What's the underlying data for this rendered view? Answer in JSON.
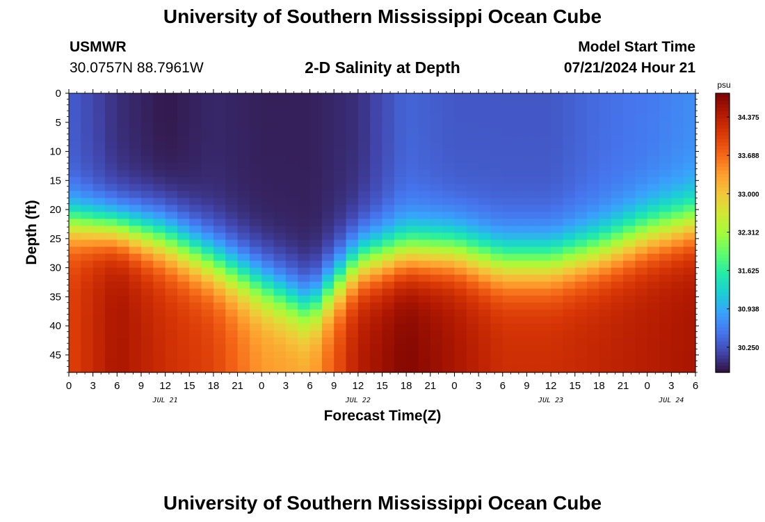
{
  "header": {
    "title": "University of Southern Mississippi Ocean Cube",
    "station_id": "USMWR",
    "station_coords": "30.0757N  88.7961W",
    "plot_title": "2-D Salinity at Depth",
    "model_start_label": "Model Start Time",
    "model_start_value": "07/21/2024 Hour 21"
  },
  "footer": {
    "title": "University of Southern Mississippi Ocean Cube"
  },
  "chart_data": {
    "type": "heatmap",
    "title": "2-D Salinity at Depth",
    "xlabel": "Forecast Time(Z)",
    "ylabel": "Depth (ft)",
    "x_unit": "hours since 07/21/2024 00Z",
    "x_range": [
      0,
      78
    ],
    "x_ticks": [
      0,
      3,
      6,
      9,
      12,
      15,
      18,
      21,
      24,
      27,
      30,
      33,
      36,
      39,
      42,
      45,
      48,
      51,
      54,
      57,
      60,
      63,
      66,
      69,
      72,
      75,
      78
    ],
    "x_tick_labels": [
      "0",
      "3",
      "6",
      "9",
      "12",
      "15",
      "18",
      "21",
      "0",
      "3",
      "6",
      "9",
      "12",
      "15",
      "18",
      "21",
      "0",
      "3",
      "6",
      "9",
      "12",
      "15",
      "18",
      "21",
      "0",
      "3",
      "6"
    ],
    "date_labels": [
      {
        "text": "JUL 21",
        "x": 12
      },
      {
        "text": "JUL 22",
        "x": 36
      },
      {
        "text": "JUL 23",
        "x": 60
      },
      {
        "text": "JUL 24",
        "x": 75
      }
    ],
    "y_range": [
      0,
      48
    ],
    "y_inverted": true,
    "y_ticks": [
      0,
      5,
      10,
      15,
      20,
      25,
      30,
      35,
      40,
      45
    ],
    "colorbar": {
      "unit": "psu",
      "range": [
        29.8,
        34.8
      ],
      "tick_values": [
        34.375,
        33.688,
        33.0,
        32.312,
        31.625,
        30.938,
        30.25
      ],
      "tick_labels": [
        "34.375",
        "33.688",
        "33.000",
        "32.312",
        "31.625",
        "30.938",
        "30.250"
      ],
      "colors": [
        "#30123b",
        "#4145ab",
        "#4675ed",
        "#39a2fc",
        "#1bcfd4",
        "#24eca6",
        "#61fc6c",
        "#a4fc3b",
        "#d1e834",
        "#f3c63a",
        "#fe9b2d",
        "#f36315",
        "#d93806",
        "#b11901",
        "#7a0402"
      ]
    },
    "salinity_profiles": [
      {
        "hour": 0,
        "top": 30.35,
        "bottom": 34.0,
        "mid_depth": 22,
        "width": 2.5
      },
      {
        "hour": 6,
        "top": 30.0,
        "bottom": 34.5,
        "mid_depth": 23,
        "width": 2.5
      },
      {
        "hour": 12,
        "top": 29.85,
        "bottom": 34.2,
        "mid_depth": 25,
        "width": 3.0
      },
      {
        "hour": 18,
        "top": 29.95,
        "bottom": 34.0,
        "mid_depth": 29,
        "width": 3.0
      },
      {
        "hour": 24,
        "top": 29.9,
        "bottom": 33.4,
        "mid_depth": 33,
        "width": 3.0
      },
      {
        "hour": 30,
        "top": 29.9,
        "bottom": 33.3,
        "mid_depth": 37,
        "width": 3.0
      },
      {
        "hour": 36,
        "top": 30.0,
        "bottom": 34.4,
        "mid_depth": 29,
        "width": 3.0
      },
      {
        "hour": 42,
        "top": 30.4,
        "bottom": 34.75,
        "mid_depth": 27,
        "width": 3.0
      },
      {
        "hour": 48,
        "top": 30.3,
        "bottom": 34.5,
        "mid_depth": 27,
        "width": 3.0
      },
      {
        "hour": 54,
        "top": 30.3,
        "bottom": 34.2,
        "mid_depth": 29,
        "width": 3.0
      },
      {
        "hour": 60,
        "top": 30.3,
        "bottom": 34.2,
        "mid_depth": 29,
        "width": 3.0
      },
      {
        "hour": 66,
        "top": 30.45,
        "bottom": 34.3,
        "mid_depth": 27,
        "width": 3.0
      },
      {
        "hour": 72,
        "top": 30.55,
        "bottom": 34.4,
        "mid_depth": 24,
        "width": 3.0
      },
      {
        "hour": 78,
        "top": 30.7,
        "bottom": 34.5,
        "mid_depth": 22,
        "width": 3.0
      }
    ]
  }
}
